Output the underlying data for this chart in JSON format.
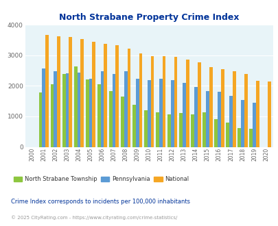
{
  "title": "North Strabane Property Crime Index",
  "years": [
    2000,
    2001,
    2002,
    2003,
    2004,
    2005,
    2006,
    2007,
    2008,
    2009,
    2010,
    2011,
    2012,
    2013,
    2014,
    2015,
    2016,
    2017,
    2018,
    2019,
    2020
  ],
  "north_strabane": [
    0,
    1780,
    2050,
    2380,
    2630,
    2200,
    2060,
    1820,
    1650,
    1370,
    1200,
    1140,
    1060,
    1120,
    1060,
    1140,
    920,
    790,
    610,
    600,
    0
  ],
  "pennsylvania": [
    0,
    2580,
    2480,
    2420,
    2440,
    2230,
    2480,
    2400,
    2480,
    2240,
    2190,
    2230,
    2190,
    2090,
    1970,
    1840,
    1800,
    1680,
    1530,
    1440,
    0
  ],
  "national": [
    0,
    3660,
    3620,
    3600,
    3530,
    3450,
    3370,
    3330,
    3230,
    3070,
    2980,
    2970,
    2950,
    2870,
    2770,
    2620,
    2540,
    2480,
    2400,
    2170,
    2140
  ],
  "colors": {
    "north_strabane": "#8DC63F",
    "pennsylvania": "#5B9BD5",
    "national": "#F5A623"
  },
  "bar_width": 0.28,
  "ylim": [
    0,
    4000
  ],
  "yticks": [
    0,
    1000,
    2000,
    3000,
    4000
  ],
  "background_color": "#E8F4F8",
  "title_color": "#003399",
  "legend_labels": [
    "North Strabane Township",
    "Pennsylvania",
    "National"
  ],
  "footnote1": "Crime Index corresponds to incidents per 100,000 inhabitants",
  "footnote2": "© 2025 CityRating.com - https://www.cityrating.com/crime-statistics/",
  "footnote2_color": "#999999",
  "footnote1_color": "#003399"
}
